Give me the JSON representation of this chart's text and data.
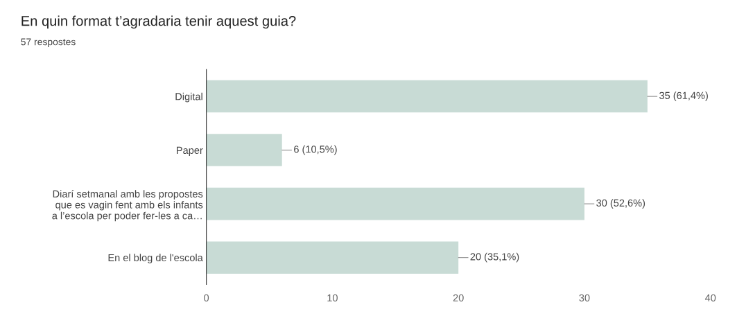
{
  "chart_data": {
    "type": "bar",
    "orientation": "horizontal",
    "title": "En quin format t’agradaria tenir aquest guia?",
    "subtitle": "57 respostes",
    "categories": [
      "Digital",
      "Paper",
      "Diarí setmanal amb les propostes\nque es vagin fent amb els infants\na l’escola per poder fer-les a ca…",
      "En el blog de l'escola"
    ],
    "values": [
      35,
      6,
      30,
      20
    ],
    "color": "#c8dbd5",
    "value_labels": [
      "35 (61,4%)",
      "6 (10,5%)",
      "30 (52,6%)",
      "20 (35,1%)"
    ],
    "xlim": [
      0,
      40
    ],
    "xticks": [
      0,
      10,
      20,
      30,
      40
    ],
    "grid": false,
    "legend": false
  }
}
